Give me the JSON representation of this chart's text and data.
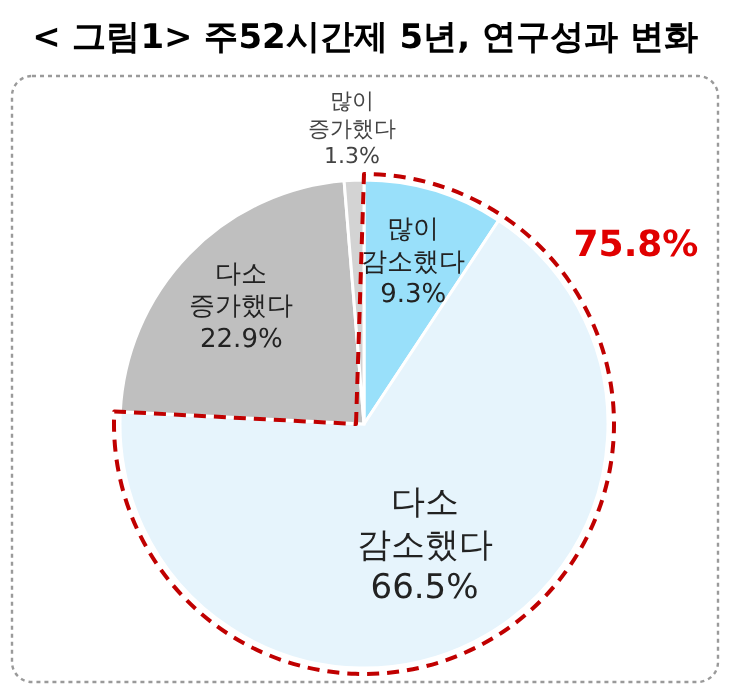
{
  "chart_data": {
    "type": "pie",
    "title": "< 그림1> 주52시간제 5년, 연구성과 변화",
    "categories": [
      "많이 감소했다",
      "다소 감소했다",
      "다소 증가했다",
      "많이 증가했다"
    ],
    "values": [
      9.3,
      66.5,
      22.9,
      1.3
    ],
    "colors": [
      "#99e0fa",
      "#e6f4fc",
      "#bfbfbf",
      "#d3d3d3"
    ],
    "value_labels": [
      "9.3%",
      "66.5%",
      "22.9%",
      "1.3%"
    ],
    "annotations": [
      "75.8%"
    ]
  }
}
